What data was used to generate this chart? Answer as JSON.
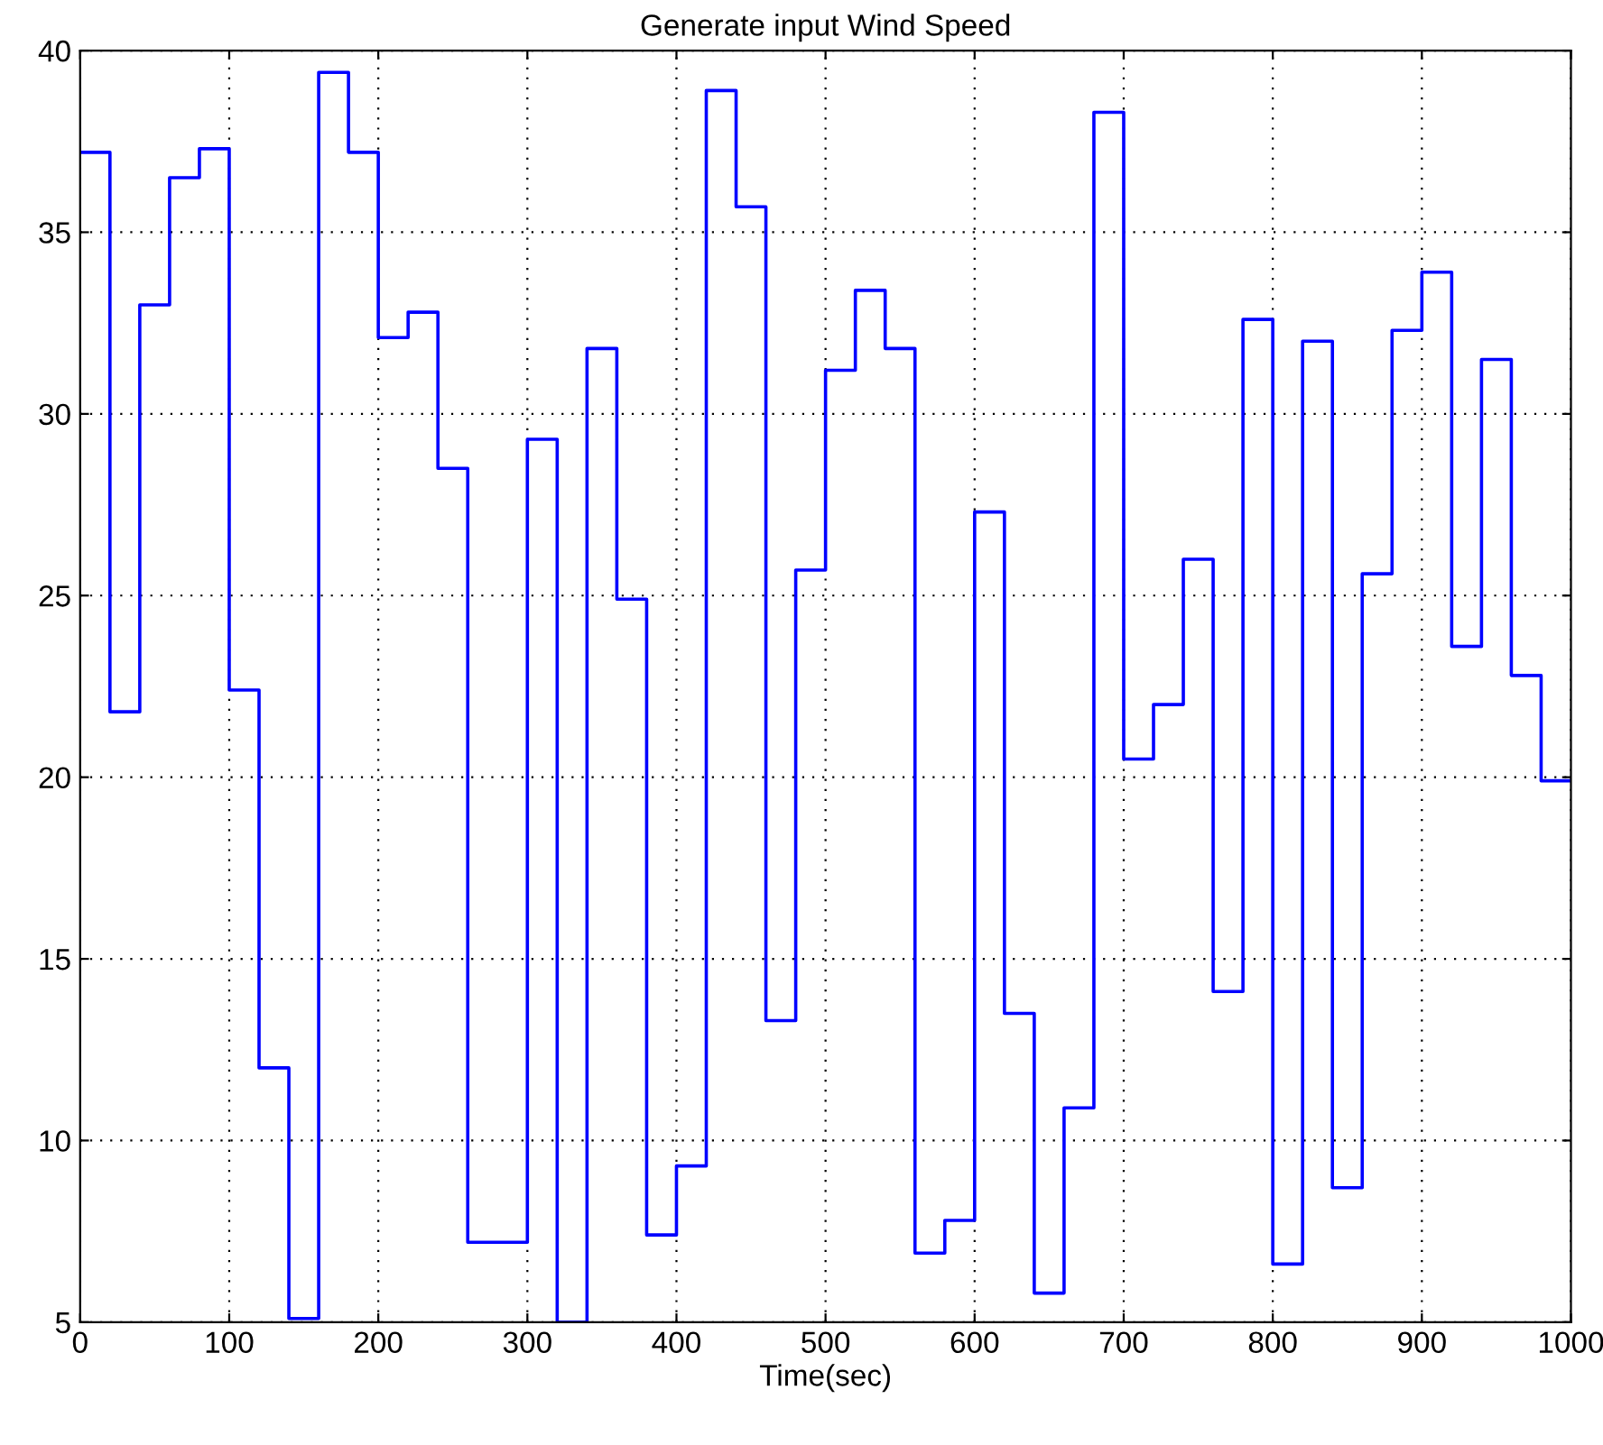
{
  "chart_data": {
    "type": "step",
    "title": "Generate input Wind Speed",
    "xlabel": "Time(sec)",
    "x": [
      0,
      20,
      40,
      60,
      80,
      100,
      120,
      140,
      160,
      180,
      200,
      220,
      240,
      260,
      280,
      300,
      320,
      340,
      360,
      380,
      400,
      420,
      440,
      460,
      480,
      500,
      520,
      540,
      560,
      580,
      600,
      620,
      640,
      660,
      680,
      700,
      720,
      740,
      760,
      780,
      800,
      820,
      840,
      860,
      880,
      900,
      920,
      940,
      960,
      980,
      1000
    ],
    "series": [
      {
        "color": "#0000ff",
        "values": [
          37.2,
          21.8,
          33.0,
          36.5,
          37.3,
          22.4,
          12.0,
          5.1,
          39.4,
          37.2,
          32.1,
          32.8,
          28.5,
          7.2,
          7.2,
          29.3,
          5.0,
          31.8,
          24.9,
          7.4,
          9.3,
          38.9,
          35.7,
          13.3,
          25.7,
          31.2,
          33.4,
          31.8,
          6.9,
          7.8,
          27.3,
          13.5,
          5.8,
          10.9,
          38.3,
          20.5,
          22.0,
          26.0,
          14.1,
          32.6,
          6.6,
          32.0,
          8.7,
          25.6,
          32.3,
          33.9,
          23.6,
          31.5,
          22.8,
          19.9,
          19.9
        ]
      }
    ],
    "xlim": [
      0,
      1000
    ],
    "xticks": [
      0,
      100,
      200,
      300,
      400,
      500,
      600,
      700,
      800,
      900,
      1000
    ],
    "ylim": [
      5,
      40
    ],
    "yticks": [
      5,
      10,
      15,
      20,
      25,
      30,
      35,
      40
    ],
    "grid": true,
    "line_style": "solid",
    "legend": false
  }
}
